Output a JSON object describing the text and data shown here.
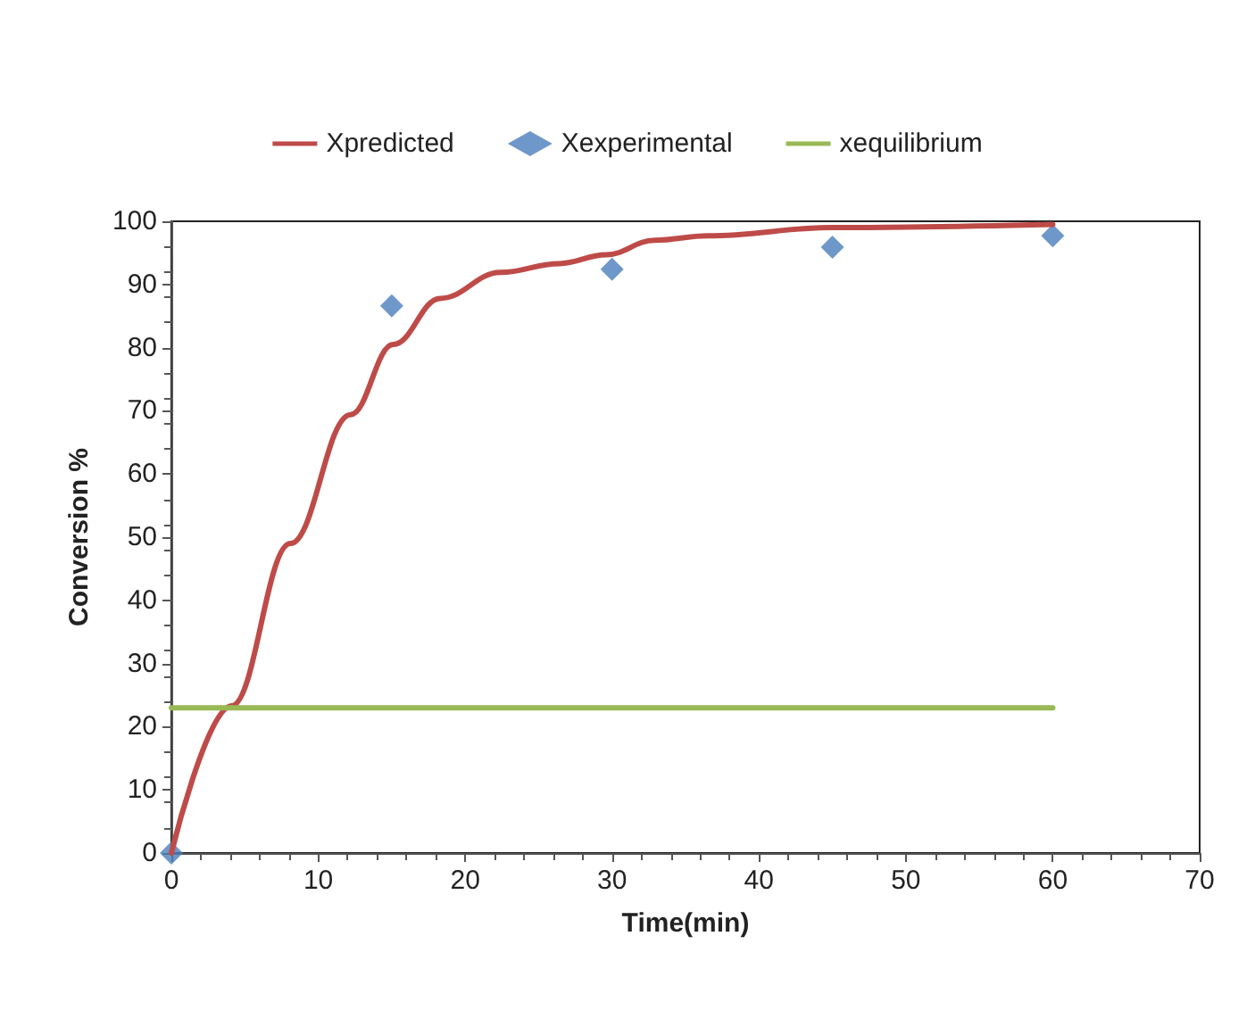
{
  "chart_data": {
    "type": "line",
    "xlabel": "Time(min)",
    "ylabel": "Conversion %",
    "xlim": [
      0,
      70
    ],
    "xticks": [
      0,
      10,
      20,
      30,
      40,
      50,
      60,
      70
    ],
    "ylim": [
      0,
      100
    ],
    "yticks": [
      0,
      10,
      20,
      30,
      40,
      50,
      60,
      70,
      80,
      90,
      100
    ],
    "grid": false,
    "legend": "top",
    "series": [
      {
        "name": "Xpredicted",
        "type": "line",
        "color": "#be4b48",
        "marker": "none",
        "x": [
          0,
          4.1,
          8.1,
          12.2,
          15.1,
          18.3,
          22.4,
          26.4,
          29.6,
          32.9,
          36.5,
          45,
          60
        ],
        "values": [
          0,
          23.3,
          49,
          69.4,
          80.5,
          87.8,
          91.9,
          93.3,
          94.7,
          97,
          97.7,
          99,
          99.5
        ]
      },
      {
        "name": "Xexperimental",
        "type": "scatter",
        "color": "#4a7ebb",
        "marker": "diamond",
        "x": [
          0,
          15,
          30,
          45,
          60
        ],
        "values": [
          0,
          86.6,
          92.4,
          95.9,
          97.7
        ]
      },
      {
        "name": "xequilibrium",
        "type": "line",
        "color": "#98b954",
        "marker": "none",
        "x": [
          0,
          60
        ],
        "values": [
          23,
          23
        ]
      }
    ]
  }
}
